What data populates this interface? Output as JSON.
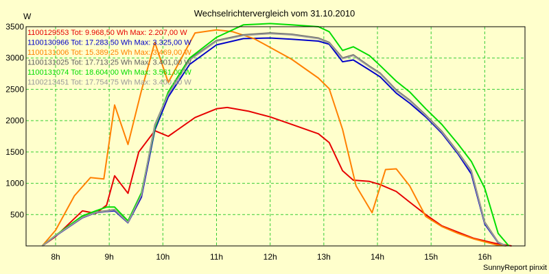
{
  "chart_data": {
    "type": "line",
    "title": "Wechselrichtervergleich vom 31.10.2010",
    "ylabel": "W",
    "xlabel": "",
    "ylim": [
      0,
      3500
    ],
    "xlim": [
      7.45,
      16.75
    ],
    "y_ticks": [
      500,
      1000,
      1500,
      2000,
      2500,
      3000,
      3500
    ],
    "x_ticks": [
      {
        "value": 8,
        "label": "8h"
      },
      {
        "value": 9,
        "label": "9h"
      },
      {
        "value": 10,
        "label": "10h"
      },
      {
        "value": 11,
        "label": "11h"
      },
      {
        "value": 12,
        "label": "12h"
      },
      {
        "value": 13,
        "label": "13h"
      },
      {
        "value": 14,
        "label": "14h"
      },
      {
        "value": 15,
        "label": "15h"
      },
      {
        "value": 16,
        "label": "16h"
      }
    ],
    "grid": true,
    "legend_position": "top-left",
    "footer": "SunnyReport pinxit",
    "series": [
      {
        "name": "1100129553",
        "legend": "1100129553 Tot: 9.968,50 Wh Max: 2.207,00 W",
        "color": "#e60000",
        "points": [
          [
            7.75,
            0
          ],
          [
            8.0,
            150
          ],
          [
            8.5,
            560
          ],
          [
            8.75,
            520
          ],
          [
            8.95,
            650
          ],
          [
            9.1,
            1120
          ],
          [
            9.35,
            840
          ],
          [
            9.55,
            1500
          ],
          [
            9.85,
            1840
          ],
          [
            10.1,
            1750
          ],
          [
            10.6,
            2050
          ],
          [
            11.0,
            2190
          ],
          [
            11.2,
            2210
          ],
          [
            11.6,
            2150
          ],
          [
            12.0,
            2060
          ],
          [
            12.4,
            1940
          ],
          [
            12.9,
            1790
          ],
          [
            13.1,
            1650
          ],
          [
            13.35,
            1200
          ],
          [
            13.55,
            1050
          ],
          [
            13.85,
            1030
          ],
          [
            14.05,
            980
          ],
          [
            14.35,
            870
          ],
          [
            14.6,
            700
          ],
          [
            14.9,
            500
          ],
          [
            15.2,
            320
          ],
          [
            15.5,
            220
          ],
          [
            15.8,
            120
          ],
          [
            16.2,
            40
          ],
          [
            16.5,
            0
          ]
        ]
      },
      {
        "name": "1100130966",
        "legend": "1100130966 Tot: 17.283,50 Wh Max: 3.325,00 W",
        "color": "#0000c8",
        "points": [
          [
            7.75,
            0
          ],
          [
            8.0,
            160
          ],
          [
            8.5,
            450
          ],
          [
            8.75,
            530
          ],
          [
            8.95,
            550
          ],
          [
            9.1,
            560
          ],
          [
            9.35,
            370
          ],
          [
            9.6,
            780
          ],
          [
            9.85,
            1850
          ],
          [
            10.1,
            2380
          ],
          [
            10.5,
            2900
          ],
          [
            11.0,
            3210
          ],
          [
            11.5,
            3310
          ],
          [
            12.0,
            3320
          ],
          [
            12.4,
            3300
          ],
          [
            12.9,
            3270
          ],
          [
            13.1,
            3220
          ],
          [
            13.35,
            2940
          ],
          [
            13.55,
            2970
          ],
          [
            13.85,
            2810
          ],
          [
            14.05,
            2700
          ],
          [
            14.35,
            2440
          ],
          [
            14.6,
            2280
          ],
          [
            14.9,
            2060
          ],
          [
            15.2,
            1800
          ],
          [
            15.5,
            1470
          ],
          [
            15.75,
            1150
          ],
          [
            16.0,
            350
          ],
          [
            16.25,
            50
          ],
          [
            16.4,
            0
          ]
        ]
      },
      {
        "name": "1100131006",
        "legend": "1100131006 Tot: 15.389,25 Wh Max: 3.469,00 W",
        "color": "#ff8000",
        "points": [
          [
            7.75,
            0
          ],
          [
            8.0,
            250
          ],
          [
            8.35,
            800
          ],
          [
            8.65,
            1090
          ],
          [
            8.9,
            1070
          ],
          [
            9.1,
            2250
          ],
          [
            9.35,
            1620
          ],
          [
            9.6,
            2480
          ],
          [
            9.85,
            3250
          ],
          [
            10.1,
            2610
          ],
          [
            10.6,
            3400
          ],
          [
            11.0,
            3450
          ],
          [
            11.3,
            3420
          ],
          [
            11.7,
            3310
          ],
          [
            12.0,
            3170
          ],
          [
            12.4,
            2980
          ],
          [
            12.9,
            2680
          ],
          [
            13.1,
            2510
          ],
          [
            13.35,
            1860
          ],
          [
            13.6,
            960
          ],
          [
            13.9,
            530
          ],
          [
            14.15,
            1220
          ],
          [
            14.35,
            1230
          ],
          [
            14.6,
            960
          ],
          [
            14.9,
            470
          ],
          [
            15.2,
            310
          ],
          [
            15.5,
            200
          ],
          [
            15.8,
            110
          ],
          [
            16.2,
            20
          ],
          [
            16.4,
            0
          ]
        ]
      },
      {
        "name": "1100131025",
        "legend": "1100131025 Tot: 17.713,25 Wh Max: 3.401,00 W",
        "color": "#606060",
        "points": [
          [
            7.75,
            0
          ],
          [
            8.0,
            165
          ],
          [
            8.5,
            460
          ],
          [
            8.75,
            540
          ],
          [
            8.95,
            560
          ],
          [
            9.1,
            580
          ],
          [
            9.35,
            380
          ],
          [
            9.6,
            820
          ],
          [
            9.85,
            1930
          ],
          [
            10.1,
            2430
          ],
          [
            10.5,
            2980
          ],
          [
            11.0,
            3280
          ],
          [
            11.5,
            3370
          ],
          [
            12.0,
            3400
          ],
          [
            12.4,
            3380
          ],
          [
            12.9,
            3320
          ],
          [
            13.1,
            3250
          ],
          [
            13.35,
            3000
          ],
          [
            13.55,
            3050
          ],
          [
            13.85,
            2870
          ],
          [
            14.05,
            2760
          ],
          [
            14.35,
            2490
          ],
          [
            14.6,
            2330
          ],
          [
            14.9,
            2090
          ],
          [
            15.2,
            1830
          ],
          [
            15.5,
            1500
          ],
          [
            15.75,
            1200
          ],
          [
            16.0,
            380
          ],
          [
            16.25,
            60
          ],
          [
            16.4,
            0
          ]
        ]
      },
      {
        "name": "1100131074",
        "legend": "1100131074 Tot: 18.604,00 Wh Max: 3.561,00 W",
        "color": "#00dd00",
        "points": [
          [
            7.75,
            0
          ],
          [
            8.0,
            170
          ],
          [
            8.5,
            480
          ],
          [
            8.75,
            560
          ],
          [
            8.95,
            620
          ],
          [
            9.1,
            620
          ],
          [
            9.35,
            400
          ],
          [
            9.6,
            850
          ],
          [
            9.85,
            1880
          ],
          [
            10.1,
            2460
          ],
          [
            10.5,
            3000
          ],
          [
            11.0,
            3330
          ],
          [
            11.5,
            3530
          ],
          [
            12.0,
            3550
          ],
          [
            12.4,
            3530
          ],
          [
            12.9,
            3500
          ],
          [
            13.1,
            3420
          ],
          [
            13.35,
            3120
          ],
          [
            13.55,
            3180
          ],
          [
            13.85,
            3040
          ],
          [
            14.05,
            2880
          ],
          [
            14.35,
            2630
          ],
          [
            14.6,
            2460
          ],
          [
            14.9,
            2190
          ],
          [
            15.2,
            1940
          ],
          [
            15.5,
            1630
          ],
          [
            15.75,
            1350
          ],
          [
            16.0,
            920
          ],
          [
            16.25,
            200
          ],
          [
            16.45,
            0
          ]
        ]
      },
      {
        "name": "1100213451",
        "legend": "1100213451 Tot: 17.754,75 Wh Max: 3.400,00 W",
        "color": "#999999",
        "points": [
          [
            7.75,
            0
          ],
          [
            8.0,
            165
          ],
          [
            8.5,
            455
          ],
          [
            8.75,
            535
          ],
          [
            8.95,
            555
          ],
          [
            9.1,
            575
          ],
          [
            9.35,
            375
          ],
          [
            9.6,
            815
          ],
          [
            9.85,
            1920
          ],
          [
            10.1,
            2420
          ],
          [
            10.5,
            2970
          ],
          [
            11.0,
            3270
          ],
          [
            11.5,
            3360
          ],
          [
            12.0,
            3390
          ],
          [
            12.4,
            3370
          ],
          [
            12.9,
            3310
          ],
          [
            13.1,
            3240
          ],
          [
            13.35,
            2990
          ],
          [
            13.55,
            3040
          ],
          [
            13.85,
            2860
          ],
          [
            14.05,
            2750
          ],
          [
            14.35,
            2480
          ],
          [
            14.6,
            2320
          ],
          [
            14.9,
            2080
          ],
          [
            15.2,
            1820
          ],
          [
            15.5,
            1490
          ],
          [
            15.75,
            1190
          ],
          [
            16.0,
            370
          ],
          [
            16.25,
            55
          ],
          [
            16.4,
            0
          ]
        ]
      }
    ]
  }
}
